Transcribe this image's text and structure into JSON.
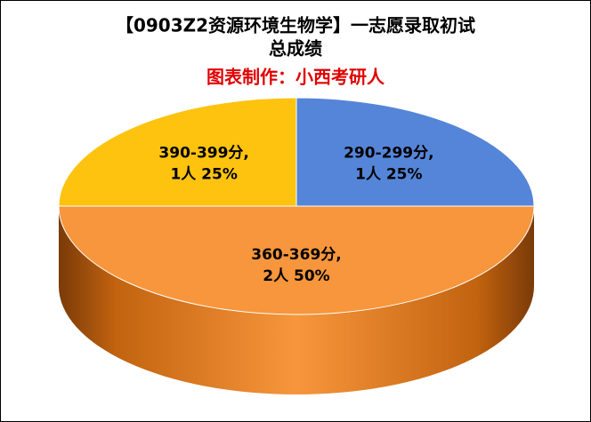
{
  "chart_data": {
    "type": "pie3d",
    "title": [
      "【0903Z2资源环境生物学】一志愿录取初试",
      "总成绩"
    ],
    "subtitle": "图表制作：小西考研人",
    "categories": [
      "290-299分,",
      "360-369分,",
      "390-399分,"
    ],
    "values": [
      1,
      2,
      1
    ],
    "value_labels": [
      "1人 25%",
      "2人 50%",
      "1人 25%"
    ],
    "colors": [
      "#5585d8",
      "#f7963c",
      "#fdc30f"
    ]
  }
}
